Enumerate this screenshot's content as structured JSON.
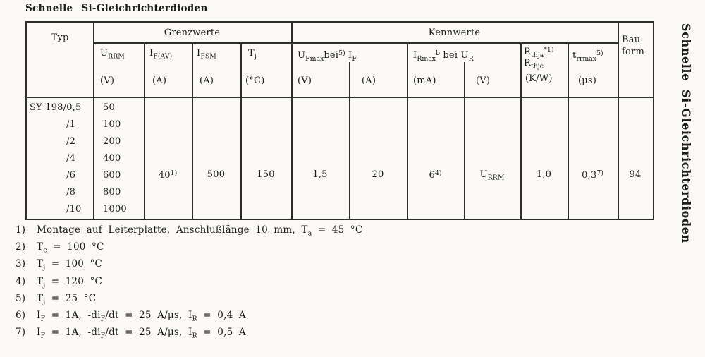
{
  "title": "Schnelle Si-Gleichrichterdioden",
  "side_title": "Schnelle Si-Gleichrichterdioden",
  "table": {
    "typ_header": "Typ",
    "group_grenzwerte": "Grenzwerte",
    "group_kennwerte": "Kennwerte",
    "bauform_header_line1": "Bau-",
    "bauform_header_line2": "form",
    "cols": {
      "urrm": {
        "symbol": "U~RRM~",
        "unit": "(V)"
      },
      "ifav": {
        "symbol": "I~F(AV)~",
        "unit": "(A)"
      },
      "ifsm": {
        "symbol": "I~FSM~",
        "unit": "(A)"
      },
      "tj": {
        "symbol": "T~j~",
        "unit": "(°C)"
      },
      "ufmax": {
        "symbol": "U~Fmax~bei^5)^ I~F~",
        "unit_v": "(V)",
        "unit_a": "(A)"
      },
      "irmax": {
        "symbol": "I~Rmax~^b^ bei U~R~",
        "unit_ma": "(mA)",
        "unit_v": "(V)"
      },
      "rth": {
        "symbol_line1": "R~thja~^*1)^",
        "symbol_line2": "R~thjc~",
        "unit": "(K/W)"
      },
      "trr": {
        "symbol": "t~rrmax~^5)^",
        "unit": "(µs)"
      }
    },
    "rows": [
      {
        "typ": "SY 198/0,5",
        "urrm": "50"
      },
      {
        "typ": "/1",
        "urrm": "100"
      },
      {
        "typ": "/2",
        "urrm": "200"
      },
      {
        "typ": "/4",
        "urrm": "400"
      },
      {
        "typ": "/6",
        "urrm": "600"
      },
      {
        "typ": "/8",
        "urrm": "800"
      },
      {
        "typ": "/10",
        "urrm": "1000"
      }
    ],
    "shared_values": {
      "ifav": "40^1)^",
      "ifsm": "500",
      "tj": "150",
      "ufmax_v": "1,5",
      "if_a": "20",
      "irmax_ma": "6^4)^",
      "ur_v": "U~RRM~",
      "rth": "1,0",
      "trr": "0,3^7)^",
      "bauform": "94"
    }
  },
  "footnotes": [
    {
      "marker": "1)",
      "text": "Montage auf Leiterplatte, Anschlußlänge 10 mm, T~a~ = 45 °C"
    },
    {
      "marker": "2)",
      "text": "T~c~ = 100 °C"
    },
    {
      "marker": "3)",
      "text": "T~j~ = 100 °C"
    },
    {
      "marker": "4)",
      "text": "T~j~ = 120 °C"
    },
    {
      "marker": "5)",
      "text": "T~j~ = 25 °C"
    },
    {
      "marker": "6)",
      "text": "I~F~ = 1A, -di~F~/dt = 25 A/µs, I~R~ = 0,4 A"
    },
    {
      "marker": "7)",
      "text": "I~F~ = 1A, -di~F~/dt = 25 A/µs, I~R~ = 0,5 A"
    }
  ],
  "colors": {
    "paper": "#fbfaf6",
    "ink": "#1c1c1c",
    "line": "#2e2e2e"
  }
}
